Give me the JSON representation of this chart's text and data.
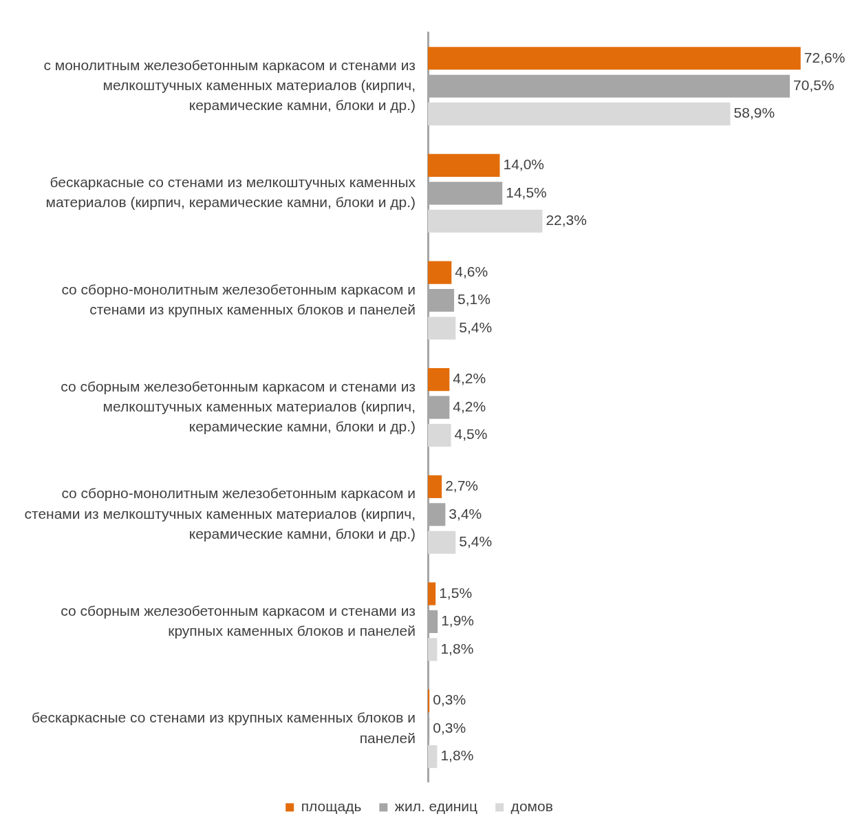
{
  "chart_data": {
    "type": "bar",
    "orientation": "horizontal",
    "tick_labels": "y",
    "grid": false,
    "legend": "bottom",
    "categories": [
      "с монолитным железобетонным каркасом и стенами из мелкоштучных каменных материалов (кирпич, керамические камни, блоки и др.)",
      "бескаркасные со стенами из мелкоштучных каменных материалов (кирпич, керамические камни, блоки и др.)",
      "со сборно-монолитным железобетонным каркасом и стенами из крупных каменных блоков и панелей",
      "со сборным железобетонным каркасом и стенами из мелкоштучных каменных материалов (кирпич, керамические камни, блоки и др.)",
      "со сборно-монолитным железобетонным каркасом и стенами из мелкоштучных каменных материалов (кирпич, керамические камни, блоки и др.)",
      "со сборным железобетонным каркасом и стенами из крупных каменных блоков и панелей",
      "бескаркасные со стенами из крупных каменных блоков и панелей"
    ],
    "series": [
      {
        "name": "площадь",
        "color": "#e36c0a",
        "values": [
          72.6,
          14.0,
          4.6,
          4.2,
          2.7,
          1.5,
          0.3
        ],
        "value_labels": [
          "72,6%",
          "14,0%",
          "4,6%",
          "4,2%",
          "2,7%",
          "1,5%",
          "0,3%"
        ]
      },
      {
        "name": "жил. единиц",
        "color": "#a6a6a6",
        "values": [
          70.5,
          14.5,
          5.1,
          4.2,
          3.4,
          1.9,
          0.3
        ],
        "value_labels": [
          "70,5%",
          "14,5%",
          "5,1%",
          "4,2%",
          "3,4%",
          "1,9%",
          "0,3%"
        ]
      },
      {
        "name": "домов",
        "color": "#d9d9d9",
        "values": [
          58.9,
          22.3,
          5.4,
          4.5,
          5.4,
          1.8,
          1.8
        ],
        "value_labels": [
          "58,9%",
          "22,3%",
          "5,4%",
          "4,5%",
          "5,4%",
          "1,8%",
          "1,8%"
        ]
      }
    ]
  }
}
